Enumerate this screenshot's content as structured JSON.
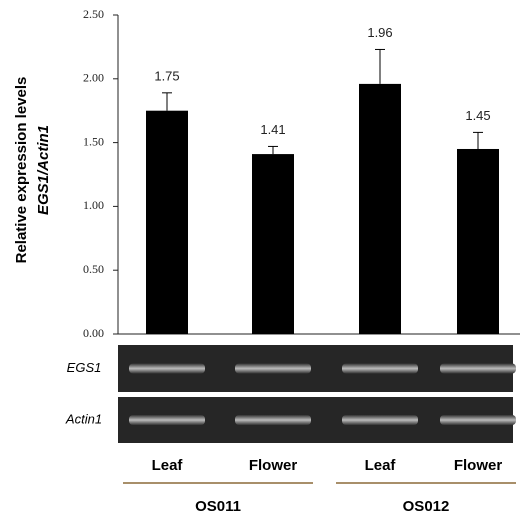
{
  "chart_data": {
    "type": "bar",
    "y_label_lines": [
      "Relative expression levels",
      "EGS1/Actin1"
    ],
    "categories": [
      "Leaf",
      "Flower",
      "Leaf",
      "Flower"
    ],
    "groups": [
      {
        "name": "OS011",
        "span": [
          0,
          1
        ]
      },
      {
        "name": "OS012",
        "span": [
          2,
          3
        ]
      }
    ],
    "values": [
      1.75,
      1.41,
      1.96,
      1.45
    ],
    "errors": [
      0.14,
      0.06,
      0.27,
      0.13
    ],
    "color": "#000000",
    "gel_rows": [
      "EGS1",
      "Actin1"
    ],
    "ylim": [
      0,
      2.5
    ],
    "yticks": [
      {
        "value": 0,
        "label": "0.00"
      },
      {
        "value": 0.5,
        "label": "0.50"
      },
      {
        "value": 1,
        "label": "1.00"
      },
      {
        "value": 1.5,
        "label": "1.50"
      },
      {
        "value": 2,
        "label": "2.00"
      },
      {
        "value": 2.5,
        "label": "2.50"
      }
    ],
    "grid": false
  }
}
